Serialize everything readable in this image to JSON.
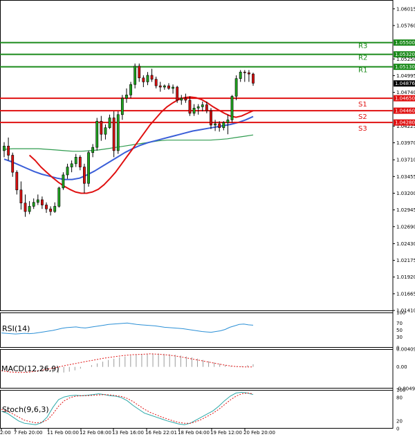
{
  "chart_data": [
    {
      "type": "candlestick",
      "title": "",
      "price_axis": {
        "range": [
          1.014,
          1.0615
        ],
        "ticks": [
          "1.06015",
          "1.05760",
          "1.05250",
          "1.04995",
          "1.04740",
          "1.04225",
          "1.03970",
          "1.03710",
          "1.03455",
          "1.03200",
          "1.02945",
          "1.02690",
          "1.02430",
          "1.02175",
          "1.01920",
          "1.01665",
          "1.01410"
        ]
      },
      "current_price": "1.04876",
      "time_labels": [
        "2:00",
        "7 Feb 20:00",
        "11 Feb 00:00",
        "12 Feb 08:00",
        "13 Feb 16:00",
        "16 Feb 22:01",
        "18 Feb 04:00",
        "19 Feb 12:00",
        "20 Feb 20:00"
      ],
      "levels": [
        {
          "name": "R3",
          "value": "1.05500",
          "color": "#1a8a1a"
        },
        {
          "name": "R2",
          "value": "1.05320",
          "color": "#1a8a1a"
        },
        {
          "name": "R1",
          "value": "1.05130",
          "color": "#1a8a1a"
        },
        {
          "name": "S1",
          "value": "1.04650",
          "color": "#e01010"
        },
        {
          "name": "S2",
          "value": "1.04460",
          "color": "#e01010"
        },
        {
          "name": "S3",
          "value": "1.04280",
          "color": "#e01010"
        }
      ],
      "candles": [
        [
          1.0385,
          1.0398,
          1.0375,
          1.0392
        ],
        [
          1.0392,
          1.0405,
          1.037,
          1.0378
        ],
        [
          1.0378,
          1.0382,
          1.0345,
          1.0352
        ],
        [
          1.0352,
          1.0355,
          1.0318,
          1.0325
        ],
        [
          1.0325,
          1.0338,
          1.0295,
          1.0305
        ],
        [
          1.0305,
          1.0318,
          1.0284,
          1.0292
        ],
        [
          1.0292,
          1.0308,
          1.0288,
          1.03
        ],
        [
          1.03,
          1.0312,
          1.0296,
          1.0306
        ],
        [
          1.0306,
          1.0318,
          1.0302,
          1.031
        ],
        [
          1.031,
          1.0315,
          1.0296,
          1.0302
        ],
        [
          1.0302,
          1.0306,
          1.029,
          1.0296
        ],
        [
          1.0296,
          1.03,
          1.0286,
          1.0292
        ],
        [
          1.0292,
          1.0306,
          1.029,
          1.03
        ],
        [
          1.03,
          1.033,
          1.0298,
          1.0328
        ],
        [
          1.0328,
          1.0352,
          1.0325,
          1.0348
        ],
        [
          1.0348,
          1.0365,
          1.0342,
          1.036
        ],
        [
          1.036,
          1.037,
          1.0352,
          1.0365
        ],
        [
          1.0365,
          1.038,
          1.036,
          1.0375
        ],
        [
          1.0375,
          1.0378,
          1.0355,
          1.036
        ],
        [
          1.036,
          1.0365,
          1.032,
          1.0335
        ],
        [
          1.0335,
          1.0385,
          1.033,
          1.0382
        ],
        [
          1.0382,
          1.0395,
          1.0375,
          1.039
        ],
        [
          1.039,
          1.0435,
          1.0385,
          1.043
        ],
        [
          1.043,
          1.0438,
          1.04,
          1.041
        ],
        [
          1.041,
          1.0425,
          1.0402,
          1.042
        ],
        [
          1.042,
          1.044,
          1.0418,
          1.0435
        ],
        [
          1.0435,
          1.0445,
          1.0375,
          1.0385
        ],
        [
          1.0385,
          1.0445,
          1.038,
          1.044
        ],
        [
          1.044,
          1.047,
          1.0432,
          1.0465
        ],
        [
          1.0465,
          1.048,
          1.0458,
          1.047
        ],
        [
          1.047,
          1.049,
          1.0465,
          1.0486
        ],
        [
          1.0486,
          1.0518,
          1.048,
          1.0514
        ],
        [
          1.0514,
          1.0518,
          1.049,
          1.0496
        ],
        [
          1.0496,
          1.05,
          1.0482,
          1.049
        ],
        [
          1.049,
          1.0505,
          1.0485,
          1.05
        ],
        [
          1.05,
          1.051,
          1.049,
          1.0494
        ],
        [
          1.0494,
          1.0498,
          1.048,
          1.0484
        ],
        [
          1.0484,
          1.049,
          1.0475,
          1.0482
        ],
        [
          1.0482,
          1.0486,
          1.0478,
          1.0484
        ],
        [
          1.0484,
          1.0488,
          1.0478,
          1.048
        ],
        [
          1.048,
          1.0486,
          1.0472,
          1.0482
        ],
        [
          1.0482,
          1.0484,
          1.0458,
          1.0462
        ],
        [
          1.0462,
          1.047,
          1.0455,
          1.0465
        ],
        [
          1.0465,
          1.0472,
          1.0458,
          1.0462
        ],
        [
          1.0462,
          1.0468,
          1.0438,
          1.0442
        ],
        [
          1.0442,
          1.0456,
          1.0438,
          1.045
        ],
        [
          1.045,
          1.0456,
          1.044,
          1.0452
        ],
        [
          1.0452,
          1.046,
          1.0445,
          1.0455
        ],
        [
          1.0455,
          1.046,
          1.0442,
          1.0446
        ],
        [
          1.0446,
          1.045,
          1.0418,
          1.0424
        ],
        [
          1.0424,
          1.0432,
          1.0415,
          1.0426
        ],
        [
          1.0426,
          1.043,
          1.0414,
          1.042
        ],
        [
          1.042,
          1.043,
          1.0416,
          1.0428
        ],
        [
          1.0428,
          1.044,
          1.041,
          1.0432
        ],
        [
          1.0432,
          1.047,
          1.0428,
          1.0468
        ],
        [
          1.0468,
          1.05,
          1.0462,
          1.0495
        ],
        [
          1.0495,
          1.0508,
          1.049,
          1.0505
        ],
        [
          1.0505,
          1.0508,
          1.049,
          1.0504
        ],
        [
          1.0504,
          1.0508,
          1.049,
          1.0502
        ],
        [
          1.0502,
          1.0504,
          1.0484,
          1.0488
        ]
      ],
      "ma_red": [
        1.0378,
        1.037,
        1.036,
        1.0352,
        1.0344,
        1.0337,
        1.0331,
        1.0326,
        1.0322,
        1.032,
        1.032,
        1.0322,
        1.0326,
        1.0333,
        1.0342,
        1.0352,
        1.0364,
        1.0376,
        1.0388,
        1.04,
        1.0412,
        1.0424,
        1.0434,
        1.0444,
        1.0452,
        1.0458,
        1.0463,
        1.0466,
        1.0467,
        1.0466,
        1.0463,
        1.0458,
        1.0452,
        1.0447,
        1.0442,
        1.0438,
        1.0436,
        1.0438,
        1.0442,
        1.0446
      ],
      "ma_blue": [
        1.0372,
        1.0368,
        1.0363,
        1.0358,
        1.0353,
        1.0349,
        1.0346,
        1.0343,
        1.0341,
        1.0341,
        1.0343,
        1.0348,
        1.0354,
        1.0361,
        1.0368,
        1.0375,
        1.0382,
        1.0388,
        1.0393,
        1.0397,
        1.04,
        1.0403,
        1.0406,
        1.0409,
        1.0412,
        1.0415,
        1.0417,
        1.0419,
        1.0421,
        1.0423,
        1.0425,
        1.0428,
        1.0432,
        1.0437
      ],
      "ma_green": [
        1.0387,
        1.0388,
        1.0388,
        1.0388,
        1.0388,
        1.0387,
        1.0386,
        1.0385,
        1.0384,
        1.0384,
        1.0385,
        1.0386,
        1.0388,
        1.039,
        1.0392,
        1.0394,
        1.0396,
        1.0398,
        1.04,
        1.0401,
        1.0401,
        1.0401,
        1.0401,
        1.0401,
        1.0401,
        1.0402,
        1.0403,
        1.0405,
        1.0407,
        1.0409
      ]
    },
    {
      "type": "line",
      "name": "RSI(14)",
      "label": "RSI(14)",
      "ticks": [
        "100",
        "70",
        "50",
        "30",
        "0"
      ],
      "ylim": [
        0,
        100
      ],
      "values": [
        42,
        41,
        40,
        39,
        40,
        41,
        40,
        41,
        43,
        45,
        47,
        49,
        52,
        55,
        57,
        58,
        59,
        57,
        56,
        58,
        60,
        62,
        64,
        66,
        67,
        68,
        69,
        70,
        68,
        66,
        65,
        64,
        63,
        62,
        60,
        58,
        57,
        56,
        55,
        54,
        52,
        50,
        48,
        46,
        45,
        44,
        46,
        48,
        52,
        58,
        62,
        66,
        67,
        65,
        64
      ]
    },
    {
      "type": "bar",
      "name": "MACD(12,26,9)",
      "label": "MACD(12,26,9)",
      "ticks": [
        "0.00409",
        "0.00",
        "-0.00499"
      ],
      "ylim": [
        -0.00499,
        0.00409
      ],
      "histogram": [
        -0.0006,
        -0.001,
        -0.0013,
        -0.0014,
        -0.0013,
        -0.0011,
        -0.0008,
        -0.0004,
        0.0,
        0.0004,
        0.0008,
        0.0012,
        0.0016,
        0.0019,
        0.0022,
        0.0024,
        0.0026,
        0.0028,
        0.0029,
        0.003,
        0.0031,
        0.0031,
        0.003,
        0.0029,
        0.0028,
        0.0026,
        0.0024,
        0.0022,
        0.0019,
        0.0016,
        0.0013,
        0.001,
        0.0007,
        0.0004,
        0.0002,
        0.0001,
        0.0002,
        0.0004,
        0.0006
      ],
      "signal": [
        -0.0009,
        -0.0012,
        -0.0013,
        -0.0012,
        -0.0009,
        -0.0005,
        -0.0001,
        0.0004,
        0.0008,
        0.0012,
        0.0016,
        0.002,
        0.0023,
        0.0026,
        0.0028,
        0.0029,
        0.003,
        0.0029,
        0.0027,
        0.0024,
        0.002,
        0.0016,
        0.0012,
        0.0008,
        0.0004,
        0.0001,
        0.0,
        0.0
      ]
    },
    {
      "type": "line",
      "name": "Stoch(9,6,3)",
      "label": "Stoch(9,6,3)",
      "ticks": [
        "100",
        "80",
        "20",
        "0"
      ],
      "ylim": [
        0,
        100
      ],
      "k": [
        45,
        40,
        30,
        20,
        14,
        12,
        10,
        15,
        30,
        55,
        75,
        82,
        85,
        86,
        85,
        86,
        88,
        90,
        88,
        85,
        84,
        80,
        72,
        60,
        50,
        40,
        35,
        30,
        25,
        20,
        16,
        12,
        10,
        14,
        22,
        30,
        38,
        46,
        58,
        72,
        84,
        92,
        94,
        92,
        88
      ],
      "d": [
        50,
        45,
        38,
        30,
        22,
        18,
        15,
        16,
        22,
        38,
        58,
        72,
        80,
        84,
        85,
        85,
        86,
        87,
        88,
        87,
        85,
        83,
        78,
        70,
        60,
        50,
        42,
        36,
        30,
        25,
        20,
        16,
        14,
        14,
        18,
        24,
        32,
        40,
        50,
        62,
        74,
        84,
        90,
        92,
        90
      ]
    }
  ]
}
